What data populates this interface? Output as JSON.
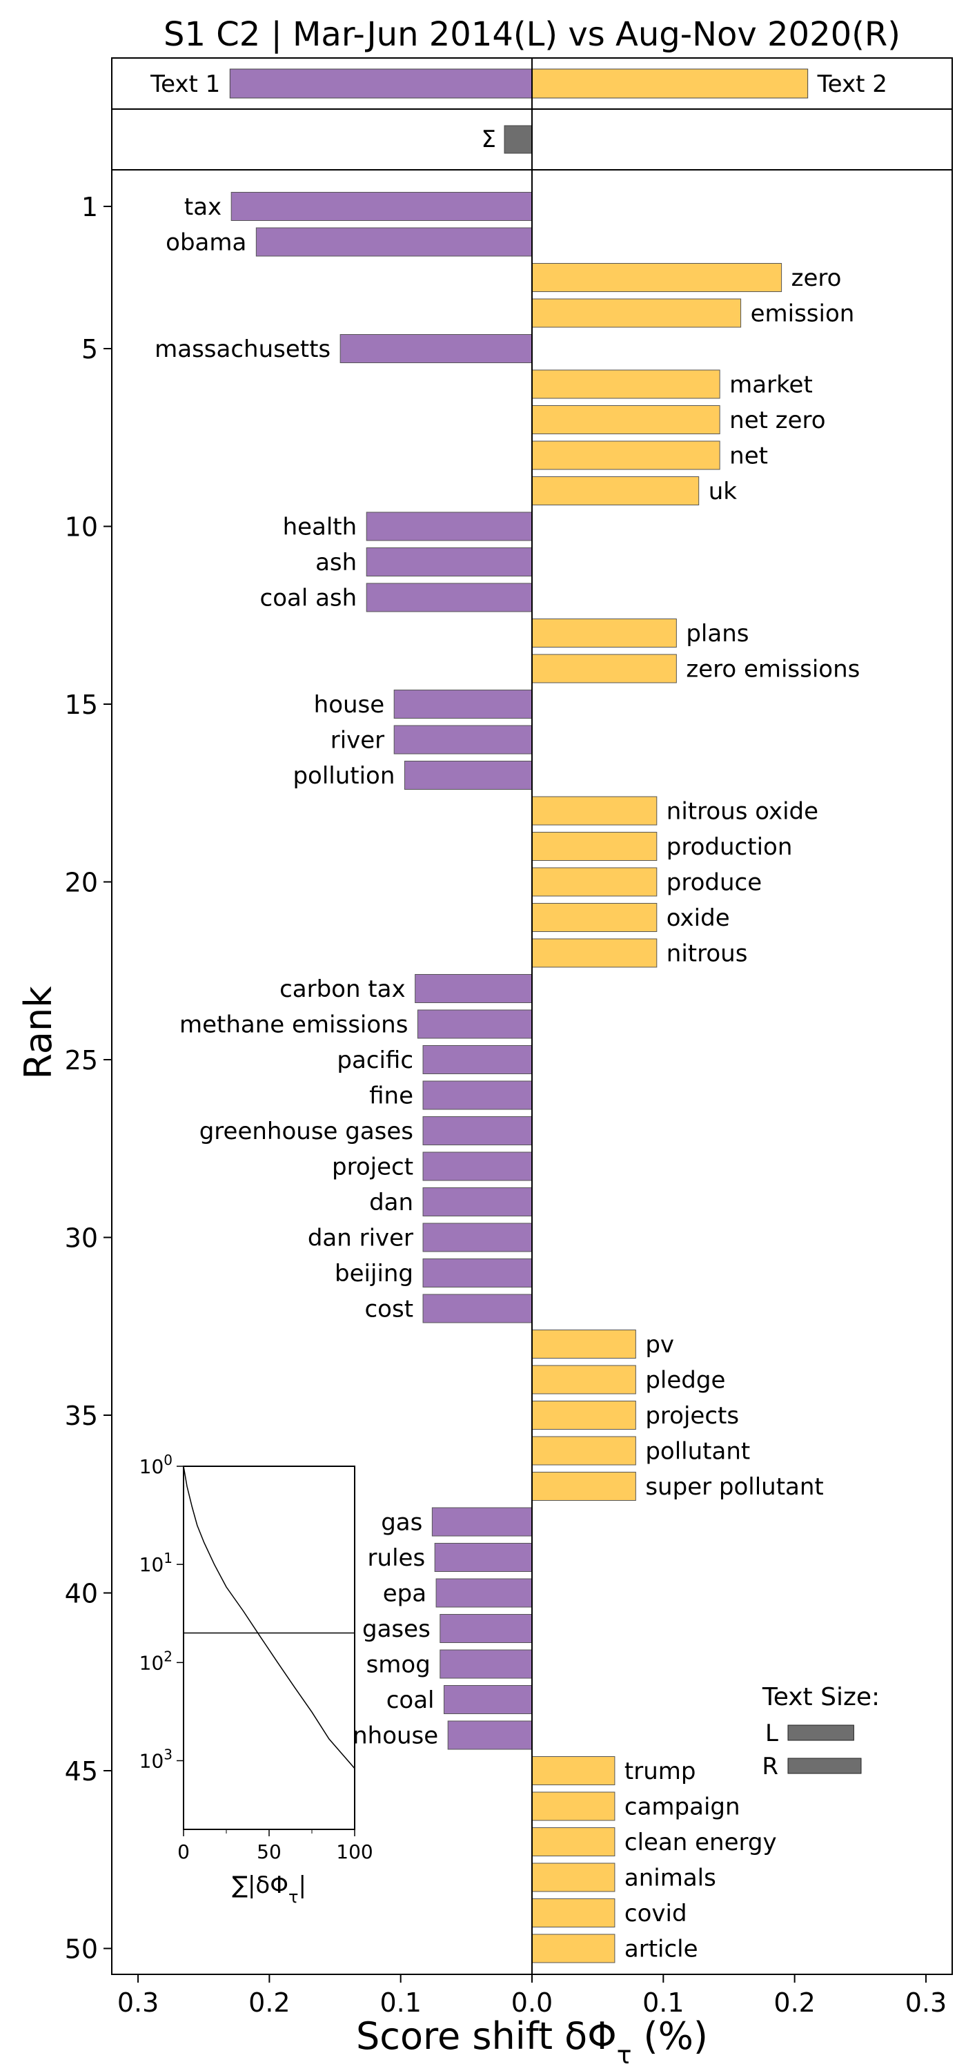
{
  "chart_data": {
    "type": "bar",
    "orientation": "horizontal",
    "title": "S1 C2 | Mar-Jun 2014(L) vs Aug-Nov 2020(R)",
    "xlabel": "Score shift δΦ_τ (%)",
    "ylabel": "Rank",
    "xlim": [
      -0.32,
      0.32
    ],
    "x_ticks": [
      -0.3,
      -0.2,
      -0.1,
      0.0,
      0.1,
      0.2,
      0.3
    ],
    "x_tick_labels": [
      "0.3",
      "0.2",
      "0.1",
      "0.0",
      "0.1",
      "0.2",
      "0.3"
    ],
    "y_ticks": [
      1,
      5,
      10,
      15,
      20,
      25,
      30,
      35,
      40,
      45,
      50
    ],
    "colors": {
      "left": "#9e77b8",
      "right": "#ffcc5c",
      "sum": "#6e6e6e",
      "size": "#6e6e6e"
    },
    "totals": {
      "text1_label": "Text 1",
      "text1": -0.23,
      "text2_label": "Text 2",
      "text2": 0.21
    },
    "sum": {
      "label": "Σ",
      "value": -0.021
    },
    "bars": [
      {
        "rank": 1,
        "word": "tax",
        "value": -0.229
      },
      {
        "rank": 2,
        "word": "obama",
        "value": -0.21
      },
      {
        "rank": 3,
        "word": "zero",
        "value": 0.19
      },
      {
        "rank": 4,
        "word": "emission",
        "value": 0.159
      },
      {
        "rank": 5,
        "word": "massachusetts",
        "value": -0.146
      },
      {
        "rank": 6,
        "word": "market",
        "value": 0.143
      },
      {
        "rank": 7,
        "word": "net zero",
        "value": 0.143
      },
      {
        "rank": 8,
        "word": "net",
        "value": 0.143
      },
      {
        "rank": 9,
        "word": "uk",
        "value": 0.127
      },
      {
        "rank": 10,
        "word": "health",
        "value": -0.126
      },
      {
        "rank": 11,
        "word": "ash",
        "value": -0.126
      },
      {
        "rank": 12,
        "word": "coal ash",
        "value": -0.126
      },
      {
        "rank": 13,
        "word": "plans",
        "value": 0.11
      },
      {
        "rank": 14,
        "word": "zero emissions",
        "value": 0.11
      },
      {
        "rank": 15,
        "word": "house",
        "value": -0.105
      },
      {
        "rank": 16,
        "word": "river",
        "value": -0.105
      },
      {
        "rank": 17,
        "word": "pollution",
        "value": -0.097
      },
      {
        "rank": 18,
        "word": "nitrous oxide",
        "value": 0.095
      },
      {
        "rank": 19,
        "word": "production",
        "value": 0.095
      },
      {
        "rank": 20,
        "word": "produce",
        "value": 0.095
      },
      {
        "rank": 21,
        "word": "oxide",
        "value": 0.095
      },
      {
        "rank": 22,
        "word": "nitrous",
        "value": 0.095
      },
      {
        "rank": 23,
        "word": "carbon tax",
        "value": -0.089
      },
      {
        "rank": 24,
        "word": "methane emissions",
        "value": -0.087
      },
      {
        "rank": 25,
        "word": "pacific",
        "value": -0.083
      },
      {
        "rank": 26,
        "word": "fine",
        "value": -0.083
      },
      {
        "rank": 27,
        "word": "greenhouse gases",
        "value": -0.083
      },
      {
        "rank": 28,
        "word": "project",
        "value": -0.083
      },
      {
        "rank": 29,
        "word": "dan",
        "value": -0.083
      },
      {
        "rank": 30,
        "word": "dan river",
        "value": -0.083
      },
      {
        "rank": 31,
        "word": "beijing",
        "value": -0.083
      },
      {
        "rank": 32,
        "word": "cost",
        "value": -0.083
      },
      {
        "rank": 33,
        "word": "pv",
        "value": 0.079
      },
      {
        "rank": 34,
        "word": "pledge",
        "value": 0.079
      },
      {
        "rank": 35,
        "word": "projects",
        "value": 0.079
      },
      {
        "rank": 36,
        "word": "pollutant",
        "value": 0.079
      },
      {
        "rank": 37,
        "word": "super pollutant",
        "value": 0.079
      },
      {
        "rank": 38,
        "word": "gas",
        "value": -0.076
      },
      {
        "rank": 39,
        "word": "rules",
        "value": -0.074
      },
      {
        "rank": 40,
        "word": "epa",
        "value": -0.073
      },
      {
        "rank": 41,
        "word": "gases",
        "value": -0.07
      },
      {
        "rank": 42,
        "word": "smog",
        "value": -0.07
      },
      {
        "rank": 43,
        "word": "coal",
        "value": -0.067
      },
      {
        "rank": 44,
        "word": "greenhouse",
        "value": -0.064
      },
      {
        "rank": 45,
        "word": "trump",
        "value": 0.063
      },
      {
        "rank": 46,
        "word": "campaign",
        "value": 0.063
      },
      {
        "rank": 47,
        "word": "clean energy",
        "value": 0.063
      },
      {
        "rank": 48,
        "word": "animals",
        "value": 0.063
      },
      {
        "rank": 49,
        "word": "covid",
        "value": 0.063
      },
      {
        "rank": 50,
        "word": "article",
        "value": 0.063
      }
    ],
    "text_size": {
      "title": "Text Size:",
      "items": [
        {
          "label": "L",
          "value": 0.9
        },
        {
          "label": "R",
          "value": 1.0
        }
      ]
    },
    "inset": {
      "xlabel": "∑|δΦ_τ|",
      "x_ticks": [
        0,
        50,
        100
      ],
      "y_scale": "log",
      "y_ticks": [
        "10^0",
        "10^1",
        "10^2",
        "10^3"
      ],
      "hline_rank": 50,
      "curve": [
        [
          0,
          1
        ],
        [
          2,
          1.6
        ],
        [
          5,
          2.6
        ],
        [
          8,
          4
        ],
        [
          12,
          6
        ],
        [
          18,
          10
        ],
        [
          25,
          17
        ],
        [
          35,
          30
        ],
        [
          45,
          55
        ],
        [
          55,
          100
        ],
        [
          65,
          180
        ],
        [
          75,
          320
        ],
        [
          85,
          600
        ],
        [
          100,
          1200
        ]
      ]
    }
  }
}
